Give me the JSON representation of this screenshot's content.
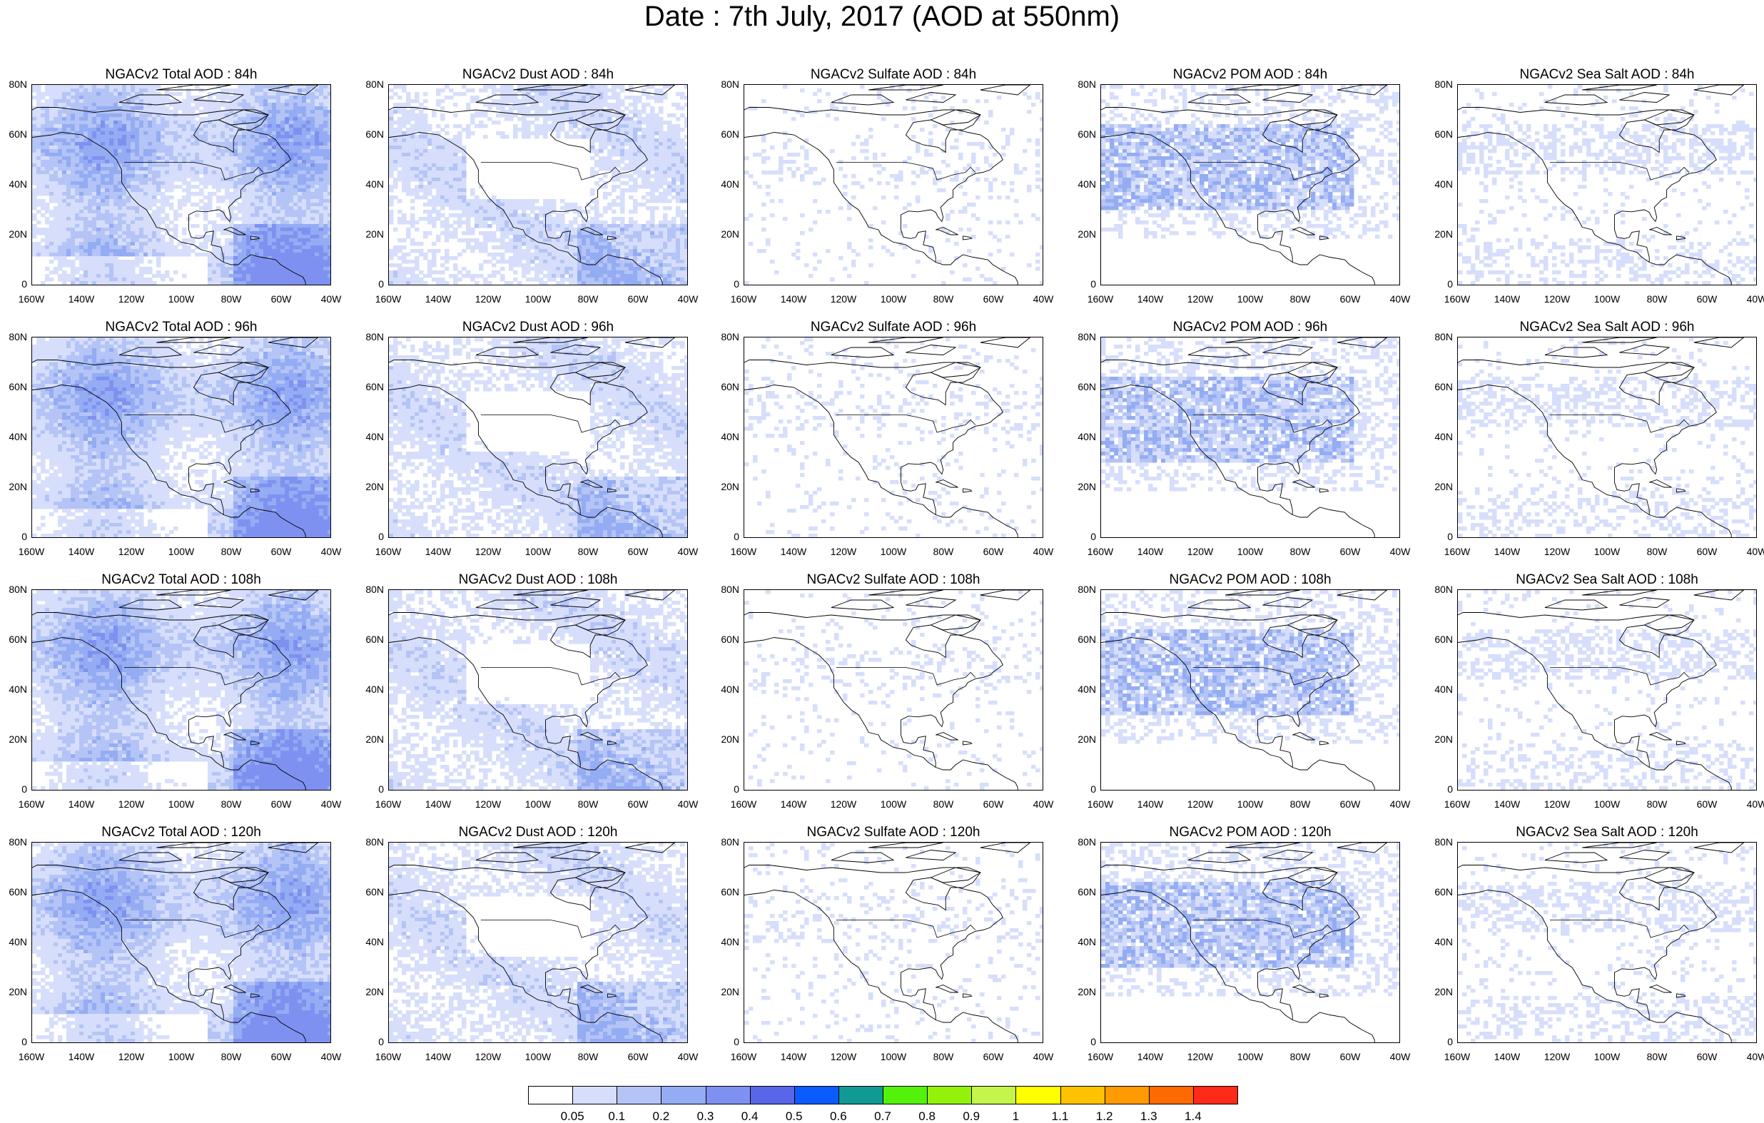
{
  "title": "Date : 7th July, 2017 (AOD at 550nm)",
  "lat_labels": [
    "80N",
    "60N",
    "40N",
    "20N",
    "0"
  ],
  "lon_labels": [
    "160W",
    "140W",
    "120W",
    "100W",
    "80W",
    "60W",
    "40W"
  ],
  "panels": [
    [
      {
        "title": "NGACv2 Total AOD : 84h",
        "fill": "heavy"
      },
      {
        "title": "NGACv2 Dust AOD : 84h",
        "fill": "dust"
      },
      {
        "title": "NGACv2 Sulfate AOD : 84h",
        "fill": "sparse"
      },
      {
        "title": "NGACv2 POM AOD : 84h",
        "fill": "medium"
      },
      {
        "title": "NGACv2 Sea Salt AOD : 84h",
        "fill": "light"
      }
    ],
    [
      {
        "title": "NGACv2 Total AOD : 96h",
        "fill": "heavy"
      },
      {
        "title": "NGACv2 Dust AOD : 96h",
        "fill": "dust"
      },
      {
        "title": "NGACv2 Sulfate AOD : 96h",
        "fill": "sparse"
      },
      {
        "title": "NGACv2 POM AOD : 96h",
        "fill": "medium"
      },
      {
        "title": "NGACv2 Sea Salt AOD : 96h",
        "fill": "light"
      }
    ],
    [
      {
        "title": "NGACv2 Total AOD : 108h",
        "fill": "heavy"
      },
      {
        "title": "NGACv2 Dust AOD : 108h",
        "fill": "dust"
      },
      {
        "title": "NGACv2 Sulfate AOD : 108h",
        "fill": "sparse"
      },
      {
        "title": "NGACv2 POM AOD : 108h",
        "fill": "medium"
      },
      {
        "title": "NGACv2 Sea Salt AOD : 108h",
        "fill": "light"
      }
    ],
    [
      {
        "title": "NGACv2 Total AOD : 120h",
        "fill": "heavy"
      },
      {
        "title": "NGACv2 Dust AOD : 120h",
        "fill": "dust"
      },
      {
        "title": "NGACv2 Sulfate AOD : 120h",
        "fill": "sparse"
      },
      {
        "title": "NGACv2 POM AOD : 120h",
        "fill": "medium"
      },
      {
        "title": "NGACv2 Sea Salt  AOD : 120h",
        "fill": "light"
      }
    ]
  ],
  "colorbar": {
    "colors": [
      "#ffffff",
      "#d6defb",
      "#b4c4f6",
      "#94acf3",
      "#7f91f0",
      "#5a66e8",
      "#0a5cff",
      "#0f9a95",
      "#54f20a",
      "#94f20a",
      "#c4f54a",
      "#ffff00",
      "#ffc200",
      "#ff9a00",
      "#ff6a00",
      "#ff2a1a"
    ],
    "labels": [
      "0.05",
      "0.1",
      "0.2",
      "0.3",
      "0.4",
      "0.5",
      "0.6",
      "0.7",
      "0.8",
      "0.9",
      "1",
      "1.1",
      "1.2",
      "1.3",
      "1.4"
    ]
  }
}
